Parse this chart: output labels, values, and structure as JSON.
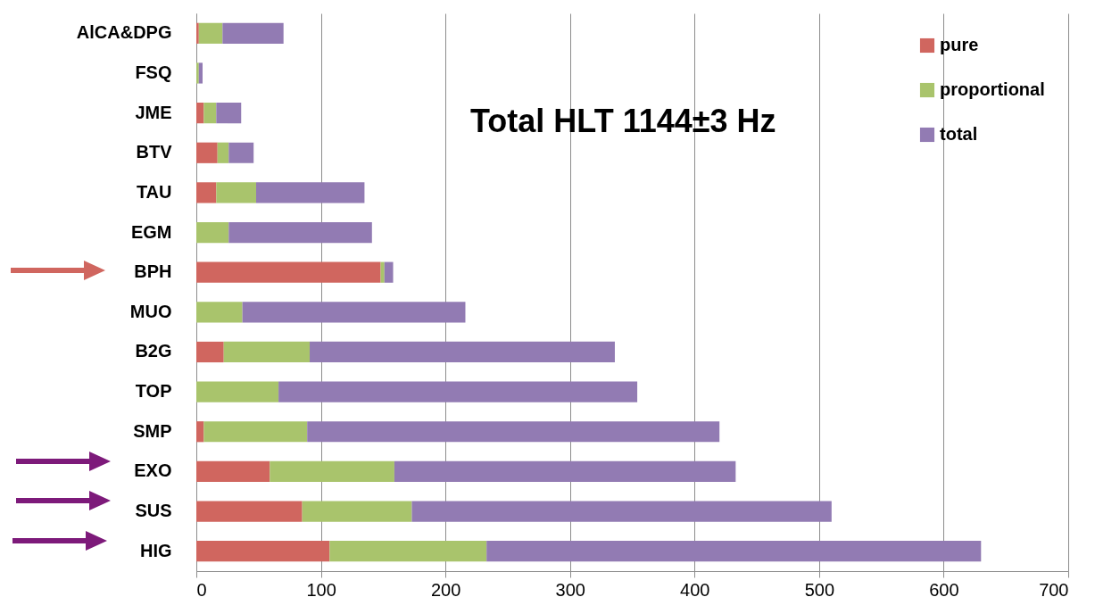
{
  "chart_data": {
    "type": "bar",
    "orientation": "horizontal",
    "stacked": true,
    "categories": [
      "AlCA&DPG",
      "FSQ",
      "JME",
      "BTV",
      "TAU",
      "EGM",
      "BPH",
      "MUO",
      "B2G",
      "TOP",
      "SMP",
      "EXO",
      "SUS",
      "HIG"
    ],
    "series": [
      {
        "name": "pure",
        "color": "#d0665f",
        "values": [
          2,
          0,
          6,
          17,
          16,
          0,
          148,
          0,
          22,
          0,
          6,
          59,
          85,
          107
        ]
      },
      {
        "name": "proportional",
        "color": "#a9c46c",
        "values": [
          19,
          2,
          10,
          9,
          32,
          26,
          3,
          37,
          69,
          66,
          83,
          100,
          88,
          126
        ]
      },
      {
        "name": "total",
        "color": "#927bb3",
        "values": [
          49,
          3,
          20,
          20,
          87,
          115,
          7,
          179,
          245,
          288,
          331,
          274,
          337,
          397
        ]
      }
    ],
    "xlim": [
      0,
      700
    ],
    "xticks": [
      0,
      100,
      200,
      300,
      400,
      500,
      600,
      700
    ],
    "grid": "x",
    "legend": "top right",
    "annotations": [
      "Total HLT 1144±3 Hz"
    ]
  }
}
